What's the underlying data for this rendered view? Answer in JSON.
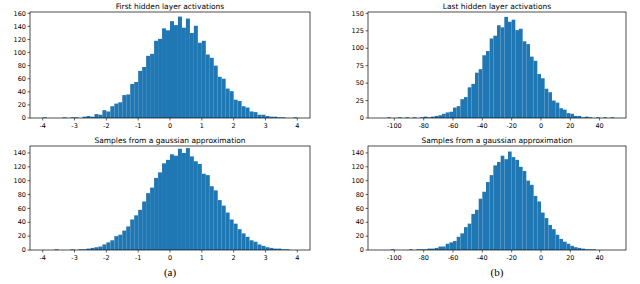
{
  "chart_data": [
    {
      "type": "histogram",
      "title": "First hidden layer activations",
      "color": "#1f77b4",
      "grid": false,
      "bins": [
        -4,
        -3.875,
        -3.75,
        -3.625,
        -3.5,
        -3.375,
        -3.25,
        -3.125,
        -3,
        -2.875,
        -2.75,
        -2.625,
        -2.5,
        -2.375,
        -2.25,
        -2.125,
        -2,
        -1.875,
        -1.75,
        -1.625,
        -1.5,
        -1.375,
        -1.25,
        -1.125,
        -1,
        -0.875,
        -0.75,
        -0.625,
        -0.5,
        -0.375,
        -0.25,
        -0.125,
        0,
        0.125,
        0.25,
        0.375,
        0.5,
        0.625,
        0.75,
        0.875,
        1,
        1.125,
        1.25,
        1.375,
        1.5,
        1.625,
        1.75,
        1.875,
        2,
        2.125,
        2.25,
        2.375,
        2.5,
        2.625,
        2.75,
        2.875,
        3,
        3.125,
        3.25,
        3.375,
        3.5,
        3.625,
        3.75,
        3.875,
        4
      ],
      "values": [
        1,
        0,
        0,
        0,
        0,
        1,
        0,
        1,
        1,
        0,
        2,
        3,
        2,
        6,
        5,
        12,
        10,
        18,
        22,
        24,
        35,
        36,
        52,
        55,
        72,
        78,
        95,
        98,
        118,
        121,
        137,
        134,
        148,
        142,
        155,
        138,
        152,
        130,
        141,
        115,
        118,
        97,
        92,
        80,
        63,
        60,
        45,
        41,
        28,
        26,
        18,
        16,
        10,
        9,
        5,
        5,
        3,
        2,
        2,
        1,
        1,
        0,
        0,
        1
      ],
      "xlim": [
        -4.4,
        4.4
      ],
      "xticks": [
        -4,
        -3,
        -2,
        -1,
        0,
        1,
        2,
        3,
        4
      ],
      "ylim": [
        0,
        162
      ],
      "yticks": [
        0,
        20,
        40,
        60,
        80,
        100,
        120,
        140,
        160
      ]
    },
    {
      "type": "histogram",
      "title": "Samples from a gaussian approximation",
      "color": "#1f77b4",
      "grid": false,
      "bins": [
        -4,
        -3.875,
        -3.75,
        -3.625,
        -3.5,
        -3.375,
        -3.25,
        -3.125,
        -3,
        -2.875,
        -2.75,
        -2.625,
        -2.5,
        -2.375,
        -2.25,
        -2.125,
        -2,
        -1.875,
        -1.75,
        -1.625,
        -1.5,
        -1.375,
        -1.25,
        -1.125,
        -1,
        -0.875,
        -0.75,
        -0.625,
        -0.5,
        -0.375,
        -0.25,
        -0.125,
        0,
        0.125,
        0.25,
        0.375,
        0.5,
        0.625,
        0.75,
        0.875,
        1,
        1.125,
        1.25,
        1.375,
        1.5,
        1.625,
        1.75,
        1.875,
        2,
        2.125,
        2.25,
        2.375,
        2.5,
        2.625,
        2.75,
        2.875,
        3,
        3.125,
        3.25,
        3.375,
        3.5,
        3.625,
        3.75,
        3.875,
        4
      ],
      "values": [
        0,
        0,
        0,
        1,
        0,
        0,
        0,
        1,
        0,
        1,
        1,
        2,
        3,
        4,
        5,
        8,
        11,
        14,
        20,
        22,
        28,
        34,
        44,
        50,
        58,
        70,
        82,
        90,
        104,
        112,
        125,
        130,
        138,
        136,
        146,
        140,
        147,
        135,
        128,
        124,
        110,
        108,
        92,
        86,
        72,
        64,
        54,
        44,
        38,
        30,
        24,
        19,
        14,
        12,
        8,
        6,
        4,
        3,
        2,
        2,
        1,
        1,
        0,
        0
      ],
      "xlim": [
        -4.4,
        4.4
      ],
      "xticks": [
        -4,
        -3,
        -2,
        -1,
        0,
        1,
        2,
        3,
        4
      ],
      "ylim": [
        0,
        150
      ],
      "yticks": [
        0,
        20,
        40,
        60,
        80,
        100,
        120,
        140
      ]
    },
    {
      "type": "histogram",
      "title": "Last hidden layer activations",
      "color": "#1f77b4",
      "grid": false,
      "bins": [
        -110,
        -107.5,
        -105,
        -102.5,
        -100,
        -97.5,
        -95,
        -92.5,
        -90,
        -87.5,
        -85,
        -82.5,
        -80,
        -77.5,
        -75,
        -72.5,
        -70,
        -67.5,
        -65,
        -62.5,
        -60,
        -57.5,
        -55,
        -52.5,
        -50,
        -47.5,
        -45,
        -42.5,
        -40,
        -37.5,
        -35,
        -32.5,
        -30,
        -27.5,
        -25,
        -22.5,
        -20,
        -17.5,
        -15,
        -12.5,
        -10,
        -7.5,
        -5,
        -2.5,
        0,
        2.5,
        5,
        7.5,
        10,
        12.5,
        15,
        17.5,
        20,
        22.5,
        25,
        27.5,
        30,
        32.5,
        35,
        37.5,
        40,
        42.5,
        45,
        47.5,
        50
      ],
      "values": [
        0,
        0,
        1,
        0,
        0,
        1,
        0,
        1,
        0,
        1,
        0,
        1,
        2,
        1,
        2,
        3,
        4,
        6,
        8,
        9,
        15,
        17,
        27,
        30,
        44,
        49,
        65,
        70,
        90,
        96,
        114,
        118,
        133,
        130,
        145,
        138,
        141,
        126,
        128,
        110,
        106,
        88,
        82,
        63,
        57,
        42,
        37,
        25,
        22,
        14,
        12,
        7,
        6,
        3,
        3,
        1,
        2,
        1,
        0,
        1,
        0,
        1,
        0,
        1
      ],
      "xlim": [
        -118,
        58
      ],
      "xticks": [
        -100,
        -80,
        -60,
        -40,
        -20,
        0,
        20,
        40
      ],
      "ylim": [
        0,
        152
      ],
      "yticks": [
        0,
        25,
        50,
        75,
        100,
        125,
        150
      ]
    },
    {
      "type": "histogram",
      "title": "Samples from a gaussian approximation",
      "color": "#1f77b4",
      "grid": false,
      "bins": [
        -110,
        -107.5,
        -105,
        -102.5,
        -100,
        -97.5,
        -95,
        -92.5,
        -90,
        -87.5,
        -85,
        -82.5,
        -80,
        -77.5,
        -75,
        -72.5,
        -70,
        -67.5,
        -65,
        -62.5,
        -60,
        -57.5,
        -55,
        -52.5,
        -50,
        -47.5,
        -45,
        -42.5,
        -40,
        -37.5,
        -35,
        -32.5,
        -30,
        -27.5,
        -25,
        -22.5,
        -20,
        -17.5,
        -15,
        -12.5,
        -10,
        -7.5,
        -5,
        -2.5,
        0,
        2.5,
        5,
        7.5,
        10,
        12.5,
        15,
        17.5,
        20,
        22.5,
        25,
        27.5,
        30,
        32.5,
        35,
        37.5,
        40,
        42.5,
        45,
        47.5,
        50
      ],
      "values": [
        0,
        0,
        0,
        1,
        0,
        0,
        0,
        0,
        1,
        0,
        1,
        1,
        1,
        2,
        2,
        3,
        5,
        5,
        9,
        11,
        13,
        19,
        24,
        33,
        38,
        52,
        58,
        74,
        84,
        98,
        108,
        122,
        127,
        136,
        131,
        142,
        134,
        130,
        120,
        114,
        100,
        94,
        78,
        70,
        54,
        46,
        36,
        30,
        22,
        16,
        12,
        9,
        6,
        4,
        3,
        2,
        1,
        1,
        1,
        0,
        0,
        0,
        0,
        0
      ],
      "xlim": [
        -118,
        58
      ],
      "xticks": [
        -100,
        -80,
        -60,
        -40,
        -20,
        0,
        20,
        40
      ],
      "ylim": [
        0,
        150
      ],
      "yticks": [
        0,
        20,
        40,
        60,
        80,
        100,
        120,
        140
      ]
    }
  ],
  "captions": [
    "(a)",
    "(b)"
  ]
}
